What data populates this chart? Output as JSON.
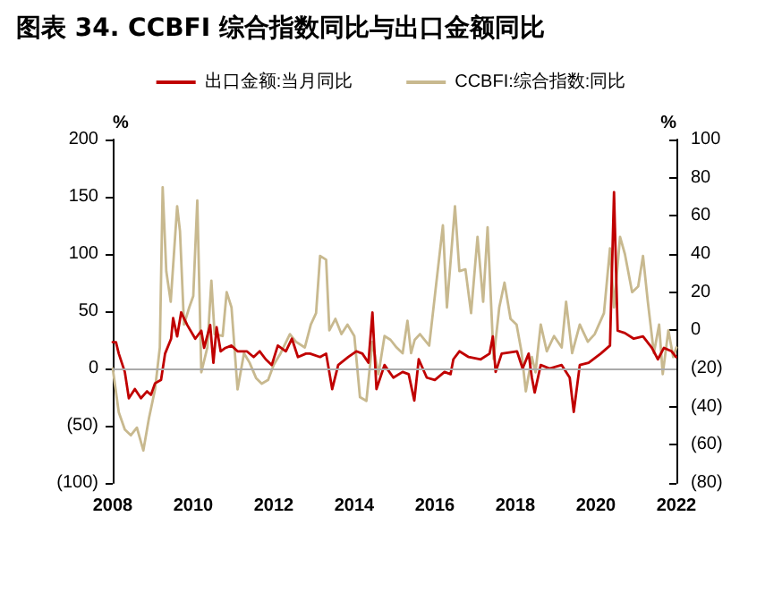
{
  "chart_data": {
    "type": "line",
    "title": "图表 34. CCBFI 综合指数同比与出口金额同比",
    "ylabel": "%",
    "y2label": "%",
    "xlim": [
      2008,
      2022
    ],
    "xticks": [
      2008,
      2010,
      2012,
      2014,
      2016,
      2018,
      2020,
      2022
    ],
    "ylim": [
      -100,
      200
    ],
    "yticks": [
      {
        "value": -100,
        "label": "(100)"
      },
      {
        "value": -50,
        "label": "(50)"
      },
      0,
      50,
      100,
      150,
      200
    ],
    "y2lim": [
      -80,
      100
    ],
    "y2ticks": [
      {
        "value": -80,
        "label": "(80)"
      },
      {
        "value": -60,
        "label": "(60)"
      },
      {
        "value": -40,
        "label": "(40)"
      },
      {
        "value": -20,
        "label": "(20)"
      },
      0,
      20,
      40,
      60,
      80,
      100
    ],
    "legend": "top",
    "grid": false,
    "ref_lines": [
      {
        "axis": "y",
        "value": 0,
        "color": "#aaaaaa"
      }
    ],
    "marker": "none",
    "line_style": "solid",
    "series": [
      {
        "name": "出口金额:当月同比",
        "color": "#c00000",
        "x": [
          2008.0,
          2008.08,
          2008.15,
          2008.3,
          2008.4,
          2008.55,
          2008.7,
          2008.85,
          2008.95,
          2009.05,
          2009.2,
          2009.3,
          2009.45,
          2009.5,
          2009.6,
          2009.7,
          2009.85,
          2010.05,
          2010.2,
          2010.27,
          2010.42,
          2010.5,
          2010.58,
          2010.68,
          2010.8,
          2010.95,
          2011.1,
          2011.33,
          2011.5,
          2011.65,
          2011.8,
          2011.95,
          2012.1,
          2012.3,
          2012.45,
          2012.6,
          2012.8,
          2012.9,
          2013.15,
          2013.3,
          2013.45,
          2013.6,
          2013.85,
          2014.05,
          2014.2,
          2014.35,
          2014.45,
          2014.55,
          2014.75,
          2014.97,
          2015.2,
          2015.35,
          2015.49,
          2015.6,
          2015.8,
          2016.0,
          2016.24,
          2016.39,
          2016.46,
          2016.61,
          2016.84,
          2017.14,
          2017.36,
          2017.44,
          2017.51,
          2017.66,
          2018.04,
          2018.18,
          2018.33,
          2018.41,
          2018.48,
          2018.63,
          2018.85,
          2019.15,
          2019.35,
          2019.45,
          2019.6,
          2019.82,
          2020.12,
          2020.35,
          2020.45,
          2020.54,
          2020.72,
          2020.94,
          2021.17,
          2021.39,
          2021.54,
          2021.69,
          2021.88,
          2021.99
        ],
        "values": [
          23,
          23,
          13,
          -3,
          -26,
          -18,
          -26,
          -20,
          -23,
          -13,
          -10,
          13,
          26,
          44,
          28,
          49,
          38,
          26,
          33,
          18,
          38,
          5,
          36,
          15,
          18,
          20,
          15,
          15,
          10,
          15,
          8,
          3,
          20,
          15,
          26,
          10,
          13,
          13,
          10,
          13,
          -18,
          3,
          10,
          15,
          13,
          5,
          49,
          -18,
          3,
          -8,
          -3,
          -5,
          -28,
          8,
          -8,
          -10,
          -3,
          -5,
          8,
          15,
          10,
          8,
          13,
          28,
          -3,
          13,
          15,
          0,
          13,
          -8,
          -21,
          3,
          0,
          3,
          -8,
          -38,
          3,
          5,
          13,
          20,
          154,
          33,
          31,
          26,
          28,
          18,
          8,
          18,
          15,
          10
        ]
      },
      {
        "name": "CCBFI:综合指数:同比",
        "color": "#c8b98f",
        "axis": "y2",
        "x": [
          2008.0,
          2008.15,
          2008.3,
          2008.45,
          2008.6,
          2008.76,
          2008.9,
          2009.05,
          2009.17,
          2009.24,
          2009.33,
          2009.44,
          2009.6,
          2009.67,
          2009.77,
          2009.9,
          2010.0,
          2010.1,
          2010.2,
          2010.35,
          2010.45,
          2010.53,
          2010.73,
          2010.83,
          2010.95,
          2011.1,
          2011.26,
          2011.4,
          2011.56,
          2011.7,
          2011.86,
          2012.0,
          2012.17,
          2012.4,
          2012.55,
          2012.77,
          2012.92,
          2013.05,
          2013.15,
          2013.3,
          2013.38,
          2013.53,
          2013.68,
          2013.83,
          2014.0,
          2014.14,
          2014.3,
          2014.45,
          2014.6,
          2014.75,
          2014.9,
          2015.05,
          2015.2,
          2015.32,
          2015.41,
          2015.5,
          2015.63,
          2015.86,
          2016.0,
          2016.2,
          2016.3,
          2016.5,
          2016.61,
          2016.76,
          2016.9,
          2017.06,
          2017.2,
          2017.31,
          2017.46,
          2017.6,
          2017.73,
          2017.88,
          2018.03,
          2018.15,
          2018.26,
          2018.41,
          2018.5,
          2018.63,
          2018.78,
          2018.96,
          2019.15,
          2019.26,
          2019.41,
          2019.6,
          2019.8,
          2019.97,
          2020.2,
          2020.35,
          2020.45,
          2020.6,
          2020.72,
          2020.9,
          2021.05,
          2021.17,
          2021.29,
          2021.44,
          2021.57,
          2021.66,
          2021.8,
          2021.92,
          2022.0
        ],
        "values": [
          -20,
          -43,
          -52,
          -55,
          -51,
          -63,
          -46,
          -31,
          -9,
          75,
          31,
          15,
          65,
          52,
          3,
          12,
          18,
          68,
          -22,
          -9,
          26,
          -2,
          -3,
          20,
          12,
          -31,
          -12,
          -17,
          -25,
          -28,
          -26,
          -18,
          -12,
          -2,
          -6,
          -9,
          3,
          9,
          39,
          37,
          0,
          6,
          -2,
          3,
          -3,
          -35,
          -37,
          -6,
          -23,
          -3,
          -5,
          -9,
          -12,
          5,
          -12,
          -5,
          -2,
          -8,
          18,
          55,
          12,
          65,
          31,
          32,
          9,
          49,
          15,
          54,
          -15,
          12,
          25,
          6,
          3,
          -11,
          -32,
          -14,
          -22,
          3,
          -11,
          -3,
          -9,
          15,
          -12,
          3,
          -6,
          -2,
          9,
          43,
          12,
          49,
          40,
          20,
          23,
          39,
          15,
          -12,
          3,
          -23,
          0,
          -14,
          -9
        ]
      }
    ]
  }
}
